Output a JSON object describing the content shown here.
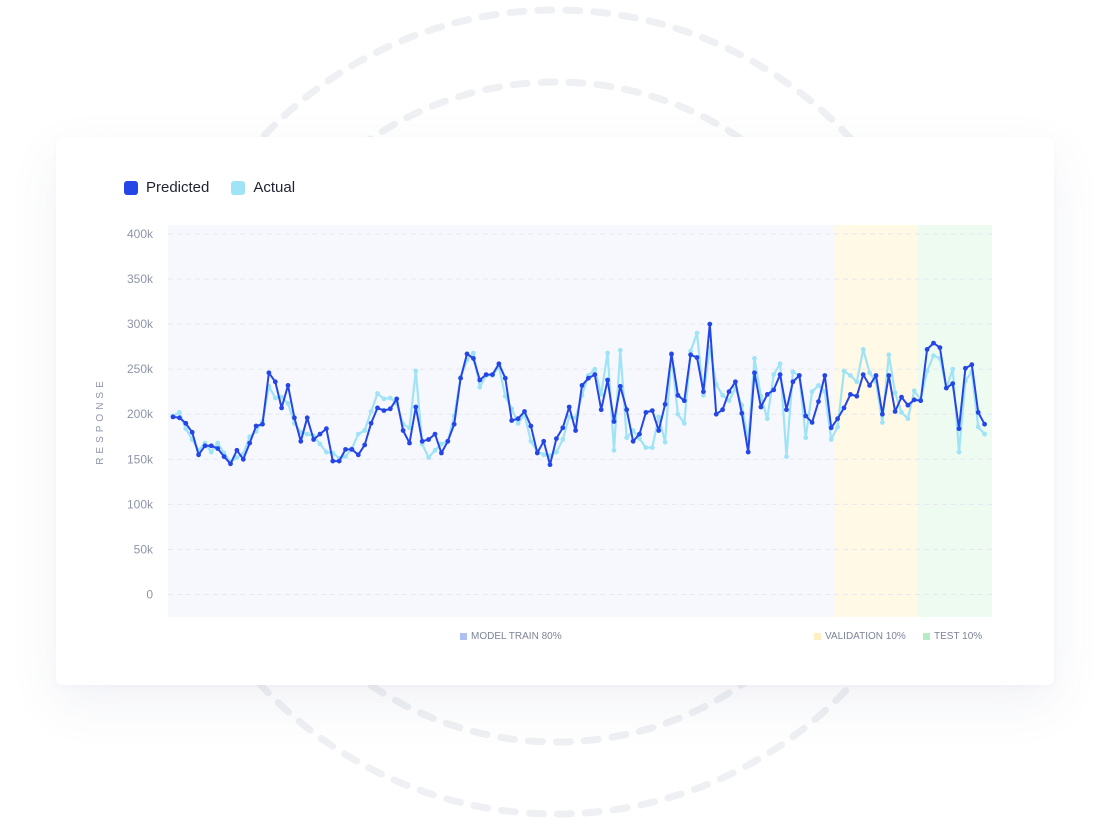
{
  "colors": {
    "predicted": "#2546e6",
    "actual": "#9fe3f6",
    "train_band": "#f7f8fd",
    "validation_band": "#fff9e6",
    "test_band": "#eefbf1",
    "train_swatch": "#aec0f2",
    "validation_swatch": "#fdefc2",
    "test_swatch": "#b5ecc3"
  },
  "legend": {
    "predicted": "Predicted",
    "actual": "Actual"
  },
  "regions": {
    "train": "MODEL TRAIN 80%",
    "validation": "VALIDATION 10%",
    "test": "TEST 10%"
  },
  "chart_data": {
    "type": "line",
    "ylabel": "RESPONSE",
    "ylim": [
      -25000,
      410000
    ],
    "yticks": [
      0,
      50000,
      100000,
      150000,
      200000,
      250000,
      300000,
      350000,
      400000
    ],
    "ytick_labels": [
      "0",
      "50k",
      "100k",
      "150k",
      "200k",
      "250k",
      "300k",
      "350k",
      "400k"
    ],
    "xlim": [
      0,
      128
    ],
    "grid": true,
    "legend": "top-left",
    "splits": {
      "train_end": 103,
      "validation_end": 116
    },
    "series": [
      {
        "name": "Predicted",
        "values": [
          197000,
          196000,
          190000,
          180000,
          155000,
          165000,
          165000,
          162000,
          153000,
          145000,
          160000,
          150000,
          168000,
          187000,
          189000,
          246000,
          236000,
          207000,
          232000,
          196000,
          170000,
          196000,
          172000,
          178000,
          184000,
          148000,
          148000,
          161000,
          161000,
          155000,
          166000,
          190000,
          207000,
          204000,
          206000,
          217000,
          182000,
          168000,
          208000,
          170000,
          172000,
          178000,
          157000,
          170000,
          189000,
          240000,
          267000,
          262000,
          238000,
          244000,
          244000,
          256000,
          240000,
          193000,
          195000,
          203000,
          187000,
          157000,
          170000,
          144000,
          173000,
          185000,
          208000,
          182000,
          232000,
          240000,
          244000,
          205000,
          238000,
          192000,
          231000,
          205000,
          170000,
          178000,
          202000,
          204000,
          182000,
          211000,
          267000,
          221000,
          215000,
          266000,
          263000,
          225000,
          300000,
          200000,
          205000,
          225000,
          236000,
          201000,
          158000,
          246000,
          208000,
          222000,
          227000,
          244000,
          205000,
          236000,
          243000,
          198000,
          191000,
          214000,
          243000,
          185000,
          195000,
          207000,
          222000,
          220000,
          244000,
          232000,
          243000,
          200000,
          243000,
          203000,
          219000,
          210000,
          216000,
          215000,
          272000,
          279000,
          274000,
          229000,
          234000,
          184000,
          251000,
          255000,
          202000,
          189000
        ],
        "markers": true
      },
      {
        "name": "Actual",
        "values": [
          198000,
          202000,
          184000,
          172000,
          160000,
          168000,
          158000,
          168000,
          157000,
          147000,
          152000,
          156000,
          175000,
          181000,
          192000,
          231000,
          218000,
          219000,
          212000,
          190000,
          180000,
          178000,
          176000,
          167000,
          158000,
          157000,
          151000,
          153000,
          162000,
          178000,
          182000,
          203000,
          223000,
          217000,
          218000,
          212000,
          189000,
          185000,
          248000,
          167000,
          152000,
          160000,
          167000,
          170000,
          198000,
          241000,
          260000,
          268000,
          230000,
          243000,
          243000,
          253000,
          220000,
          206000,
          190000,
          200000,
          170000,
          159000,
          155000,
          154000,
          158000,
          172000,
          197000,
          196000,
          221000,
          243000,
          250000,
          222000,
          268000,
          160000,
          271000,
          174000,
          182000,
          173000,
          163000,
          163000,
          197000,
          169000,
          266000,
          200000,
          190000,
          270000,
          290000,
          221000,
          274000,
          233000,
          221000,
          215000,
          229000,
          210000,
          170000,
          262000,
          220000,
          195000,
          244000,
          256000,
          153000,
          247000,
          243000,
          174000,
          225000,
          232000,
          225000,
          172000,
          186000,
          248000,
          243000,
          236000,
          272000,
          246000,
          236000,
          191000,
          266000,
          224000,
          202000,
          195000,
          226000,
          216000,
          248000,
          265000,
          262000,
          229000,
          250000,
          158000,
          237000,
          247000,
          186000,
          178000
        ],
        "markers": true
      }
    ]
  }
}
